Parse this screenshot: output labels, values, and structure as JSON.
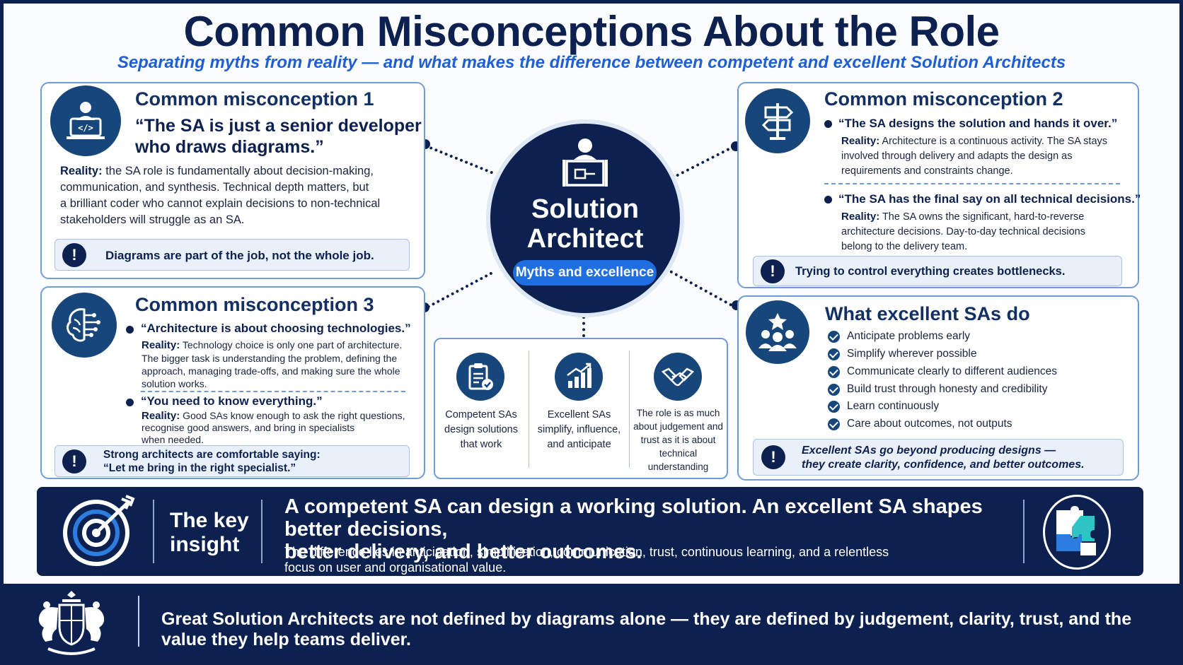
{
  "header": {
    "title": "Common Misconceptions About the Role",
    "subtitle": "Separating myths from reality — and what makes the difference between competent and excellent Solution Architects"
  },
  "center": {
    "title_line1": "Solution",
    "title_line2": "Architect",
    "pill": "Myths and excellence",
    "icon": "architect-blueprint-icon"
  },
  "misconception1": {
    "title": "Common misconception 1",
    "quote_line1": "“The SA is just a senior developer",
    "quote_line2": "who draws diagrams.”",
    "reality_label": "Reality:",
    "reality_line1": " the SA role is fundamentally about decision-making,",
    "reality_line2": "communication, and synthesis. Technical depth matters, but",
    "reality_line3": "a brilliant coder who cannot explain decisions to non-technical",
    "reality_line4": "stakeholders will struggle as an SA.",
    "callout": "Diagrams are part of the job, not the whole job.",
    "icon": "laptop-developer-icon"
  },
  "misconception2": {
    "title": "Common misconception 2",
    "icon": "signpost-icon",
    "items": [
      {
        "quote": "“The SA designs the solution and hands it over.”",
        "reality_label": "Reality:",
        "line1": " Architecture is a continuous activity. The SA stays",
        "line2": "involved through delivery and adapts the design as",
        "line3": "requirements and constraints change."
      },
      {
        "quote": "“The SA has the final say on all technical decisions.”",
        "reality_label": "Reality:",
        "line1": " The SA owns the significant, hard-to-reverse",
        "line2": "architecture decisions. Day-to-day technical decisions",
        "line3": "belong to the delivery team."
      }
    ],
    "callout": "Trying to control everything creates bottlenecks."
  },
  "misconception3": {
    "title": "Common misconception 3",
    "icon": "brain-circuit-icon",
    "items": [
      {
        "quote": "“Architecture is about choosing technologies.”",
        "reality_label": "Reality:",
        "line1": "  Technology choice is only one part of architecture.",
        "line2": "The bigger task is understanding the problem, defining the",
        "line3": "approach, managing trade-offs, and making sure the whole",
        "line4": "solution works."
      },
      {
        "quote": "“You need to know everything.”",
        "reality_label": "Reality:",
        "line1": "  Good SAs know enough to ask the right questions,",
        "line2": "recognise good answers, and bring in specialists",
        "line3": "when needed."
      }
    ],
    "callout_line1": "Strong architects are comfortable saying:",
    "callout_line2": "“Let me bring in the right specialist.”"
  },
  "excellent": {
    "title": "What excellent SAs do",
    "icon": "team-star-icon",
    "items": [
      "Anticipate problems early",
      "Simplify wherever possible",
      "Communicate clearly to different audiences",
      "Build trust through honesty and credibility",
      "Learn continuously",
      "Care about outcomes, not outputs"
    ],
    "callout_line1": "Excellent SAs go beyond producing designs —",
    "callout_line2": "they create clarity, confidence, and better outcomes."
  },
  "comparison": [
    {
      "icon": "clipboard-check-icon",
      "line1": "Competent SAs",
      "line2": "design solutions",
      "line3": "that work"
    },
    {
      "icon": "growth-chart-icon",
      "line1": "Excellent SAs",
      "line2": "simplify, influence,",
      "line3": "and anticipate"
    },
    {
      "icon": "handshake-icon",
      "line1": "The role is as much",
      "line2": "about judgement and",
      "line3": "trust as it is about",
      "line4": "technical understanding"
    }
  ],
  "insight": {
    "label_line1": "The key",
    "label_line2": "insight",
    "headline_line1": "A competent SA can design a working solution. An excellent SA shapes better decisions,",
    "headline_line2": "better delivery, and better outcomes.",
    "sub_line1": "The difference lies in anticipation, simplification, communication, trust, continuous learning, and a relentless",
    "sub_line2": "focus on user and organisational value.",
    "left_icon": "target-arrow-icon",
    "right_icon": "puzzle-pieces-icon"
  },
  "footer": {
    "text": "Great Solution Architects are not defined by diagrams alone — they are defined by judgement, clarity, trust, and the value they help teams deliver.",
    "emblem": "royal-coat-of-arms-icon"
  },
  "colors": {
    "navy": "#0d2150",
    "accent_blue": "#1f5fd6",
    "icon_teal": "#17467a",
    "card_border": "#6f9bd8",
    "callout_bg": "#e9f0fa"
  }
}
